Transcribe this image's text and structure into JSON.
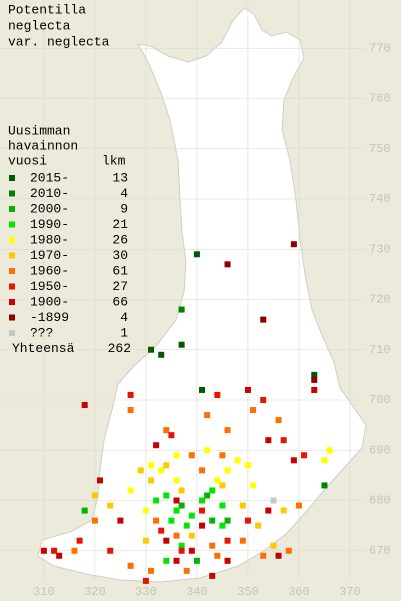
{
  "title": [
    "Potentilla",
    "neglecta",
    "var. neglecta"
  ],
  "legend": {
    "header": [
      "Uusimman",
      "havainnon"
    ],
    "col1": "vuosi",
    "col2": "lkm",
    "entries": [
      {
        "label": "2015-",
        "count": 13,
        "color": "#005a00"
      },
      {
        "label": "2010-",
        "count": 4,
        "color": "#008200"
      },
      {
        "label": "2000-",
        "count": 9,
        "color": "#00b400"
      },
      {
        "label": "1990-",
        "count": 21,
        "color": "#00e600"
      },
      {
        "label": "1980-",
        "count": 26,
        "color": "#ffff00"
      },
      {
        "label": "1970-",
        "count": 30,
        "color": "#ffc800"
      },
      {
        "label": "1960-",
        "count": 61,
        "color": "#ff6e00"
      },
      {
        "label": "1950-",
        "count": 27,
        "color": "#e61400"
      },
      {
        "label": "1900-",
        "count": 66,
        "color": "#c80000"
      },
      {
        "label": "-1899",
        "count": 4,
        "color": "#8c0000"
      },
      {
        "label": "???",
        "count": 1,
        "color": "#c8c8c8"
      }
    ],
    "total_label": "Yhteensä",
    "total": 262
  },
  "map": {
    "xlim": [
      301.4,
      380
    ],
    "ylim": [
      660,
      779.6
    ],
    "xticks": [
      310,
      320,
      330,
      340,
      350,
      360,
      370
    ],
    "yticks": [
      770,
      760,
      750,
      740,
      730,
      720,
      710,
      700,
      690,
      680,
      670
    ],
    "points": [
      [
        340,
        729,
        0
      ],
      [
        337,
        718,
        1
      ],
      [
        337,
        711,
        0
      ],
      [
        331,
        710,
        0
      ],
      [
        333,
        709,
        0
      ],
      [
        341,
        702,
        0
      ],
      [
        363,
        705,
        0
      ],
      [
        365,
        683,
        1
      ],
      [
        337,
        679,
        2
      ],
      [
        336,
        678,
        3
      ],
      [
        339,
        677,
        3
      ],
      [
        341,
        680,
        3
      ],
      [
        342,
        681,
        2
      ],
      [
        343,
        682,
        3
      ],
      [
        345,
        679,
        3
      ],
      [
        334,
        681,
        3
      ],
      [
        332,
        680,
        3
      ],
      [
        335,
        676,
        3
      ],
      [
        338,
        675,
        3
      ],
      [
        343,
        676,
        2
      ],
      [
        345,
        675,
        3
      ],
      [
        337,
        671,
        3
      ],
      [
        334,
        668,
        3
      ],
      [
        340,
        668,
        2
      ],
      [
        346,
        676,
        2
      ],
      [
        318,
        678,
        2
      ],
      [
        333,
        686,
        4
      ],
      [
        336,
        689,
        4
      ],
      [
        331,
        687,
        4
      ],
      [
        348,
        688,
        4
      ],
      [
        350,
        687,
        4
      ],
      [
        344,
        684,
        4
      ],
      [
        327,
        682,
        4
      ],
      [
        330,
        678,
        4
      ],
      [
        342,
        690,
        4
      ],
      [
        351,
        683,
        4
      ],
      [
        336,
        684,
        4
      ],
      [
        346,
        686,
        4
      ],
      [
        365,
        688,
        4
      ],
      [
        366,
        690,
        4
      ],
      [
        329,
        686,
        5
      ],
      [
        331,
        684,
        5
      ],
      [
        334,
        687,
        5
      ],
      [
        320,
        681,
        5
      ],
      [
        323,
        679,
        5
      ],
      [
        345,
        683,
        5
      ],
      [
        337,
        682,
        5
      ],
      [
        349,
        679,
        5
      ],
      [
        352,
        675,
        5
      ],
      [
        355,
        671,
        5
      ],
      [
        339,
        673,
        5
      ],
      [
        357,
        678,
        5
      ],
      [
        330,
        672,
        5
      ],
      [
        327,
        698,
        6
      ],
      [
        334,
        694,
        6
      ],
      [
        342,
        697,
        6
      ],
      [
        346,
        694,
        6
      ],
      [
        351,
        698,
        6
      ],
      [
        356,
        696,
        6
      ],
      [
        339,
        689,
        6
      ],
      [
        345,
        689,
        6
      ],
      [
        341,
        686,
        6
      ],
      [
        332,
        676,
        6
      ],
      [
        336,
        673,
        6
      ],
      [
        343,
        671,
        6
      ],
      [
        349,
        672,
        6
      ],
      [
        353,
        669,
        6
      ],
      [
        358,
        670,
        6
      ],
      [
        327,
        667,
        6
      ],
      [
        331,
        666,
        6
      ],
      [
        320,
        676,
        6
      ],
      [
        316,
        670,
        6
      ],
      [
        338,
        666,
        6
      ],
      [
        344,
        669,
        6
      ],
      [
        360,
        679,
        6
      ],
      [
        327,
        701,
        7
      ],
      [
        335,
        693,
        7
      ],
      [
        344,
        701,
        7
      ],
      [
        353,
        700,
        7
      ],
      [
        357,
        692,
        7
      ],
      [
        361,
        689,
        7
      ],
      [
        341,
        678,
        7
      ],
      [
        333,
        674,
        7
      ],
      [
        337,
        670,
        7
      ],
      [
        312,
        670,
        7
      ],
      [
        317,
        672,
        7
      ],
      [
        323,
        670,
        7
      ],
      [
        346,
        672,
        7
      ],
      [
        350,
        676,
        7
      ],
      [
        330,
        664,
        7
      ],
      [
        318,
        699,
        8
      ],
      [
        332,
        691,
        8
      ],
      [
        350,
        702,
        8
      ],
      [
        354,
        692,
        8
      ],
      [
        359,
        688,
        8
      ],
      [
        363,
        702,
        8
      ],
      [
        354,
        678,
        8
      ],
      [
        336,
        680,
        8
      ],
      [
        341,
        675,
        8
      ],
      [
        339,
        670,
        8
      ],
      [
        334,
        672,
        8
      ],
      [
        310,
        670,
        8
      ],
      [
        313,
        669,
        8
      ],
      [
        321,
        684,
        8
      ],
      [
        325,
        676,
        8
      ],
      [
        346,
        668,
        8
      ],
      [
        356,
        669,
        8
      ],
      [
        336,
        668,
        8
      ],
      [
        343,
        665,
        8
      ],
      [
        359,
        731,
        9
      ],
      [
        346,
        727,
        9
      ],
      [
        353,
        716,
        9
      ],
      [
        363,
        704,
        9
      ],
      [
        355,
        680,
        10
      ]
    ]
  }
}
